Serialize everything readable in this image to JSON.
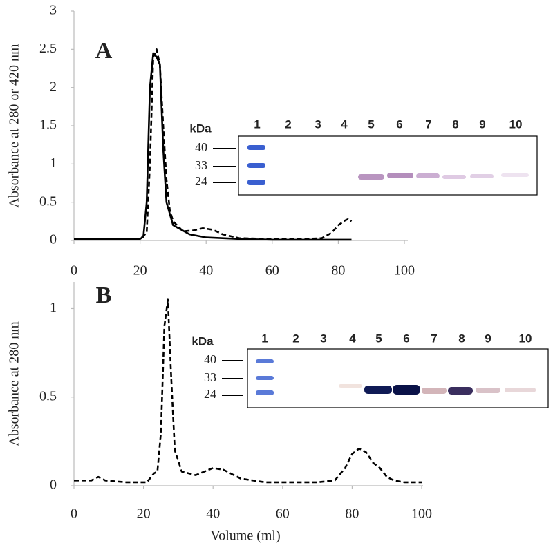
{
  "chart_data": [
    {
      "type": "line",
      "panel": "A",
      "ylabel": "Absorbance at 280 or 420 nm",
      "xlim": [
        0,
        100
      ],
      "xticks": [
        0,
        20,
        40,
        60,
        80,
        100
      ],
      "ylim": [
        0,
        3
      ],
      "yticks": [
        0,
        0.5,
        1,
        1.5,
        2,
        2.5,
        3
      ],
      "series": [
        {
          "color": "#000000",
          "dash": "solid",
          "x": [
            0,
            10,
            20,
            21,
            22,
            23,
            24,
            25,
            26,
            27,
            28,
            30,
            35,
            40,
            50,
            60,
            70,
            80,
            84
          ],
          "values": [
            0.02,
            0.02,
            0.02,
            0.05,
            0.5,
            2.0,
            2.45,
            2.4,
            2.3,
            1.2,
            0.5,
            0.2,
            0.08,
            0.04,
            0.02,
            0.01,
            0.01,
            0.01,
            0.01
          ]
        },
        {
          "color": "#000000",
          "dash": "dashed",
          "x": [
            0,
            20,
            22,
            23,
            24,
            25,
            26,
            27,
            28,
            29,
            30,
            33,
            36,
            39,
            42,
            45,
            50,
            60,
            70,
            75,
            78,
            80,
            82,
            83,
            84
          ],
          "values": [
            0.02,
            0.02,
            0.1,
            1.0,
            2.4,
            2.5,
            2.3,
            1.5,
            0.8,
            0.4,
            0.25,
            0.12,
            0.13,
            0.16,
            0.14,
            0.08,
            0.03,
            0.02,
            0.02,
            0.03,
            0.1,
            0.2,
            0.26,
            0.28,
            0.25
          ]
        }
      ],
      "gel": {
        "kda_label": "kDa",
        "markers": [
          "40",
          "33",
          "24"
        ],
        "lanes": [
          "1",
          "2",
          "3",
          "4",
          "5",
          "6",
          "7",
          "8",
          "9",
          "10"
        ]
      }
    },
    {
      "type": "line",
      "panel": "B",
      "ylabel": "Absorbance at 280 nm",
      "xlabel": "Volume (ml)",
      "xlim": [
        0,
        100
      ],
      "xticks": [
        0,
        20,
        40,
        60,
        80,
        100
      ],
      "ylim": [
        0,
        1.15
      ],
      "yticks": [
        0,
        0.5,
        1
      ],
      "series": [
        {
          "color": "#000000",
          "dash": "dashed",
          "x": [
            0,
            5,
            7,
            9,
            15,
            21,
            23,
            24,
            25,
            26,
            27,
            28,
            29,
            31,
            35,
            40,
            43,
            48,
            55,
            70,
            75,
            78,
            80,
            82,
            84,
            86,
            88,
            90,
            92,
            95,
            100
          ],
          "values": [
            0.03,
            0.03,
            0.05,
            0.03,
            0.02,
            0.02,
            0.07,
            0.08,
            0.3,
            0.9,
            1.05,
            0.6,
            0.2,
            0.08,
            0.06,
            0.1,
            0.09,
            0.04,
            0.02,
            0.02,
            0.03,
            0.1,
            0.18,
            0.21,
            0.19,
            0.13,
            0.1,
            0.05,
            0.03,
            0.02,
            0.02
          ]
        }
      ],
      "gel": {
        "kda_label": "kDa",
        "markers": [
          "40",
          "33",
          "24"
        ],
        "lanes": [
          "1",
          "2",
          "3",
          "4",
          "5",
          "6",
          "7",
          "8",
          "9",
          "10"
        ]
      }
    }
  ]
}
